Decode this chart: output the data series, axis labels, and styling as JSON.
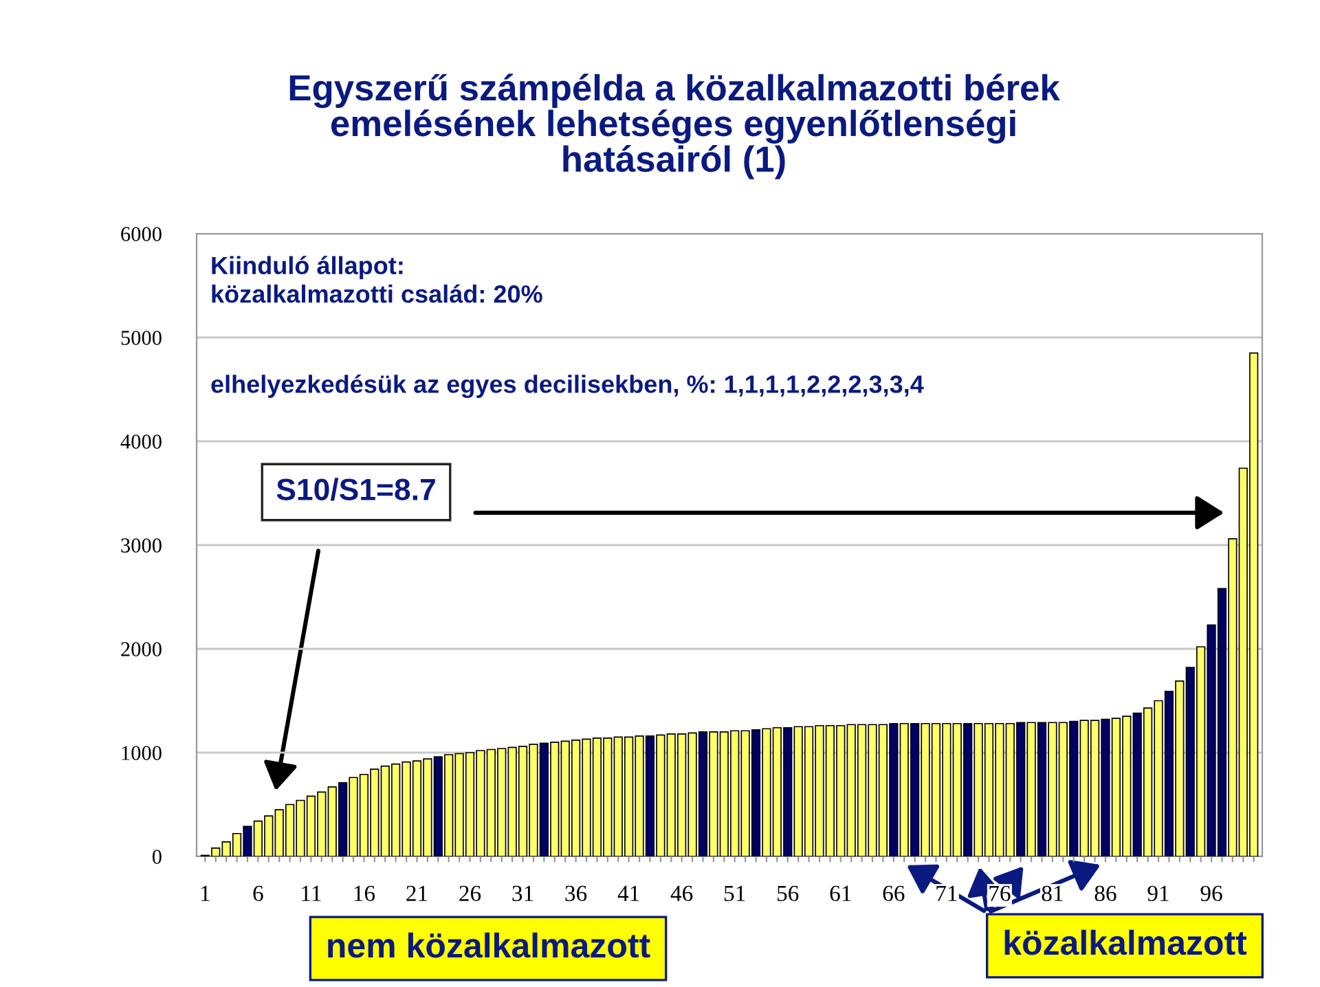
{
  "chart_data": {
    "type": "bar",
    "title": "Egyszerű számpélda a közalkalmazotti bérek\nemelésének lehetséges egyenlőtlenségi\nhatásairól (1)",
    "annotations": [
      "Kiinduló állapot:\nközalkalmazotti család: 20%",
      "elhelyezkedésük az egyes decilisekben, %: 1,1,1,1,2,2,2,3,3,4",
      "S10/S1=8.7",
      "nem közalkalmazott",
      "közalkalmazott"
    ],
    "categories": [
      "1",
      null,
      null,
      null,
      null,
      "6",
      null,
      null,
      null,
      null,
      "11",
      null,
      null,
      null,
      null,
      "16",
      null,
      null,
      null,
      null,
      "21",
      null,
      null,
      null,
      null,
      "26",
      null,
      null,
      null,
      null,
      "31",
      null,
      null,
      null,
      null,
      "36",
      null,
      null,
      null,
      null,
      "41",
      null,
      null,
      null,
      null,
      "46",
      null,
      null,
      null,
      null,
      "51",
      null,
      null,
      null,
      null,
      "56",
      null,
      null,
      null,
      null,
      "61",
      null,
      null,
      null,
      null,
      "66",
      null,
      null,
      null,
      null,
      "71",
      null,
      null,
      null,
      null,
      "76",
      null,
      null,
      null,
      null,
      "81",
      null,
      null,
      null,
      null,
      "86",
      null,
      null,
      null,
      null,
      "91",
      null,
      null,
      null,
      null,
      "96",
      null,
      null,
      null,
      null
    ],
    "values": [
      10,
      80,
      140,
      220,
      290,
      340,
      390,
      450,
      500,
      540,
      580,
      620,
      670,
      710,
      760,
      790,
      840,
      870,
      890,
      910,
      920,
      940,
      960,
      980,
      990,
      1000,
      1020,
      1030,
      1040,
      1050,
      1060,
      1080,
      1090,
      1100,
      1110,
      1120,
      1130,
      1140,
      1140,
      1150,
      1150,
      1160,
      1160,
      1170,
      1180,
      1180,
      1190,
      1200,
      1200,
      1200,
      1210,
      1210,
      1220,
      1230,
      1240,
      1240,
      1250,
      1250,
      1260,
      1260,
      1260,
      1270,
      1270,
      1270,
      1270,
      1280,
      1280,
      1280,
      1280,
      1280,
      1280,
      1280,
      1280,
      1280,
      1280,
      1280,
      1280,
      1290,
      1290,
      1290,
      1290,
      1290,
      1300,
      1310,
      1310,
      1320,
      1330,
      1350,
      1380,
      1430,
      1500,
      1590,
      1690,
      1820,
      2020,
      2230,
      2580,
      3060,
      3740,
      4850
    ],
    "colors": [
      "#000066",
      "#ffff66",
      "#ffff66",
      "#ffff66",
      "#000066",
      "#ffff66",
      "#ffff66",
      "#ffff66",
      "#ffff66",
      "#ffff66",
      "#ffff66",
      "#ffff66",
      "#ffff66",
      "#000066",
      "#ffff66",
      "#ffff66",
      "#ffff66",
      "#ffff66",
      "#ffff66",
      "#ffff66",
      "#ffff66",
      "#ffff66",
      "#000066",
      "#ffff66",
      "#ffff66",
      "#ffff66",
      "#ffff66",
      "#ffff66",
      "#ffff66",
      "#ffff66",
      "#ffff66",
      "#ffff66",
      "#000066",
      "#ffff66",
      "#ffff66",
      "#ffff66",
      "#ffff66",
      "#ffff66",
      "#ffff66",
      "#ffff66",
      "#ffff66",
      "#ffff66",
      "#000066",
      "#ffff66",
      "#ffff66",
      "#ffff66",
      "#ffff66",
      "#000066",
      "#ffff66",
      "#ffff66",
      "#ffff66",
      "#ffff66",
      "#000066",
      "#ffff66",
      "#ffff66",
      "#000066",
      "#ffff66",
      "#ffff66",
      "#ffff66",
      "#ffff66",
      "#ffff66",
      "#ffff66",
      "#ffff66",
      "#ffff66",
      "#ffff66",
      "#000066",
      "#ffff66",
      "#000066",
      "#ffff66",
      "#ffff66",
      "#ffff66",
      "#ffff66",
      "#000066",
      "#ffff66",
      "#ffff66",
      "#ffff66",
      "#ffff66",
      "#000066",
      "#ffff66",
      "#000066",
      "#ffff66",
      "#ffff66",
      "#000066",
      "#ffff66",
      "#ffff66",
      "#000066",
      "#ffff66",
      "#ffff66",
      "#000066",
      "#ffff66",
      "#ffff66",
      "#000066",
      "#ffff66",
      "#000066",
      "#ffff66",
      "#000066",
      "#000066",
      "#ffff66",
      "#ffff66",
      "#ffff66"
    ],
    "ylim": [
      0,
      6000
    ],
    "yticks": [
      0,
      1000,
      2000,
      3000,
      4000,
      5000,
      6000
    ],
    "grid": "y"
  }
}
